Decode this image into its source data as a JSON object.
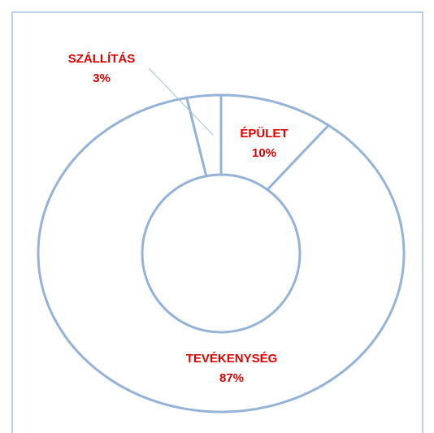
{
  "chart_data": {
    "type": "donut",
    "categories": [
      "ÉPÜLET",
      "TEVÉKENYSÉG",
      "SZÁLLÍTÁS"
    ],
    "values": [
      10,
      87,
      3
    ],
    "value_labels": [
      "10%",
      "87%",
      "3%"
    ],
    "color": "#ffffff",
    "edge_color": "#95b3d7",
    "label_color": "#e00000"
  }
}
